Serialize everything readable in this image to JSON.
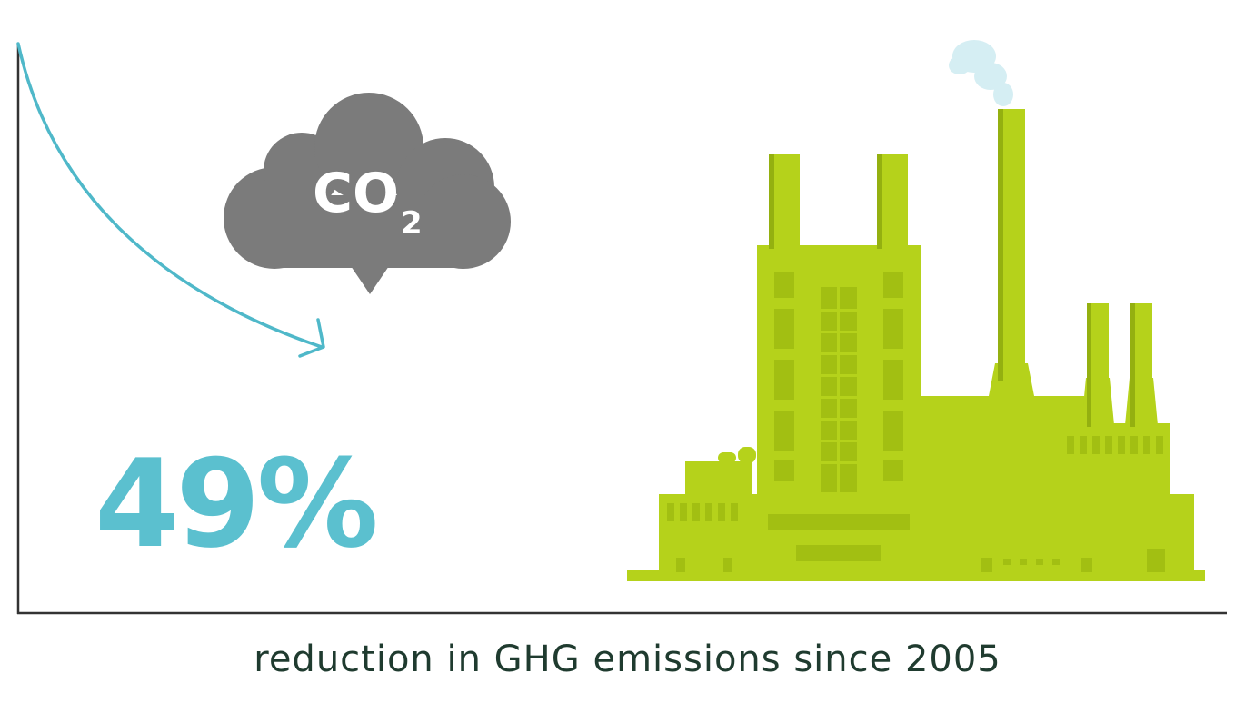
{
  "stat": {
    "value": "49%"
  },
  "caption": {
    "text": "reduction in GHG emissions since 2005"
  },
  "cloud": {
    "label": "CO",
    "subscript": "2"
  },
  "icons": {
    "trend": "downward-arrow-icon",
    "cloud": "co2-cloud-icon",
    "factory": "factory-icon",
    "smoke": "smoke-icon"
  },
  "colors": {
    "accent": "#5bc0cf",
    "arrow": "#4fb8c9",
    "cloud": "#7b7b7b",
    "factory": "#b5d21b",
    "factory_dark": "#94b010",
    "factory_window": "#a2bf12",
    "smoke": "#d5eef3",
    "axis": "#333333",
    "caption": "#1f3b2f"
  }
}
